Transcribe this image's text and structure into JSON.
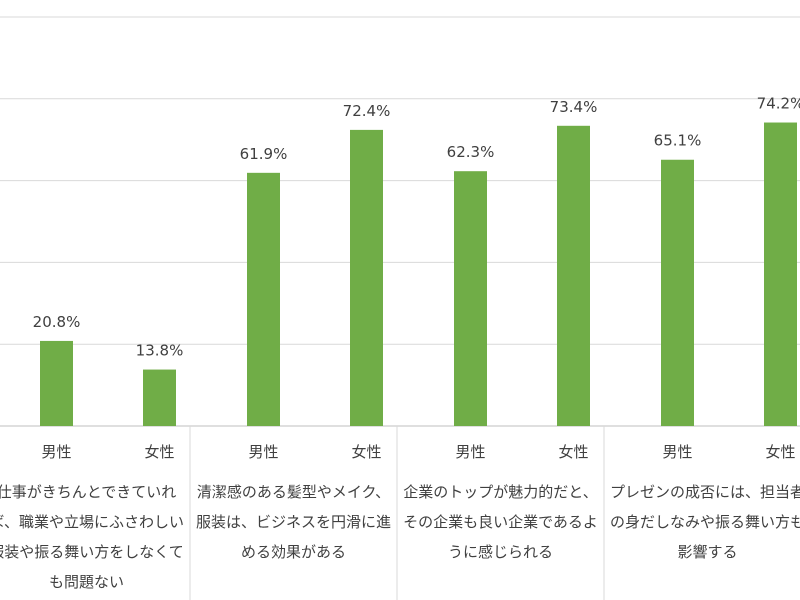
{
  "chart_data": {
    "type": "bar",
    "bar_color": "#70ad47",
    "ylim": [
      0,
      100
    ],
    "grid": true,
    "categories": [
      {
        "label_lines": [
          "仕事がきちんとできていれ",
          "ば、職業や立場にふさわしい",
          "服装や振る舞い方をしなくて",
          "も問題ない"
        ],
        "bars": [
          {
            "group": "男性",
            "value": 20.8,
            "label": "20.8%"
          },
          {
            "group": "女性",
            "value": 13.8,
            "label": "13.8%"
          }
        ]
      },
      {
        "label_lines": [
          "清潔感のある髪型やメイク、",
          "服装は、ビジネスを円滑に進",
          "める効果がある"
        ],
        "bars": [
          {
            "group": "男性",
            "value": 61.9,
            "label": "61.9%"
          },
          {
            "group": "女性",
            "value": 72.4,
            "label": "72.4%"
          }
        ]
      },
      {
        "label_lines": [
          "企業のトップが魅力的だと、",
          "その企業も良い企業であるよ",
          "うに感じられる"
        ],
        "bars": [
          {
            "group": "男性",
            "value": 62.3,
            "label": "62.3%"
          },
          {
            "group": "女性",
            "value": 73.4,
            "label": "73.4%"
          }
        ]
      },
      {
        "label_lines": [
          "プレゼンの成否には、担当者",
          "の身だしなみや振る舞い方も",
          "影響する"
        ],
        "bars": [
          {
            "group": "男性",
            "value": 65.1,
            "label": "65.1%"
          },
          {
            "group": "女性",
            "value": 74.2,
            "label": "74.2%"
          }
        ]
      }
    ]
  }
}
